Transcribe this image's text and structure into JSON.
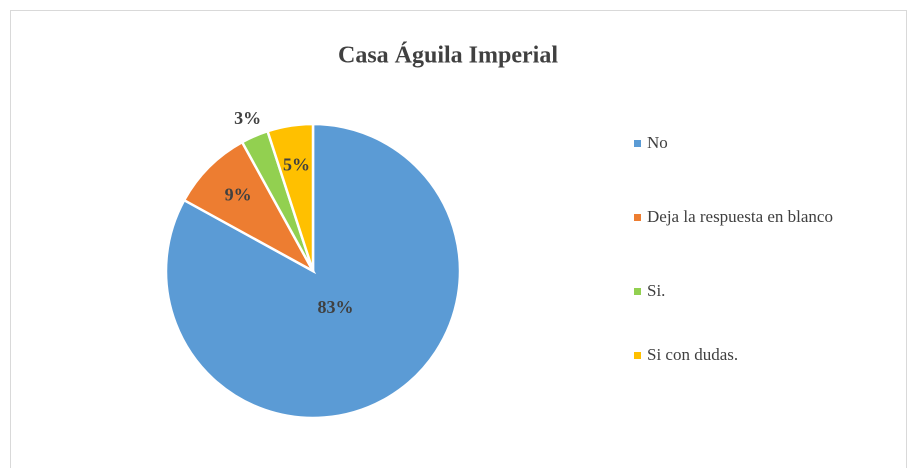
{
  "chart_data": {
    "type": "pie",
    "title": "Casa Águila Imperial",
    "categories": [
      "No",
      "Deja la respuesta en blanco",
      "Si.",
      "Si con dudas."
    ],
    "values": [
      83,
      9,
      3,
      5
    ],
    "value_labels": [
      "83%",
      "9%",
      "3%",
      "5%"
    ],
    "colors": [
      "#5b9bd5",
      "#ed7d31",
      "#92d050",
      "#ffc000"
    ],
    "legend": "right"
  }
}
